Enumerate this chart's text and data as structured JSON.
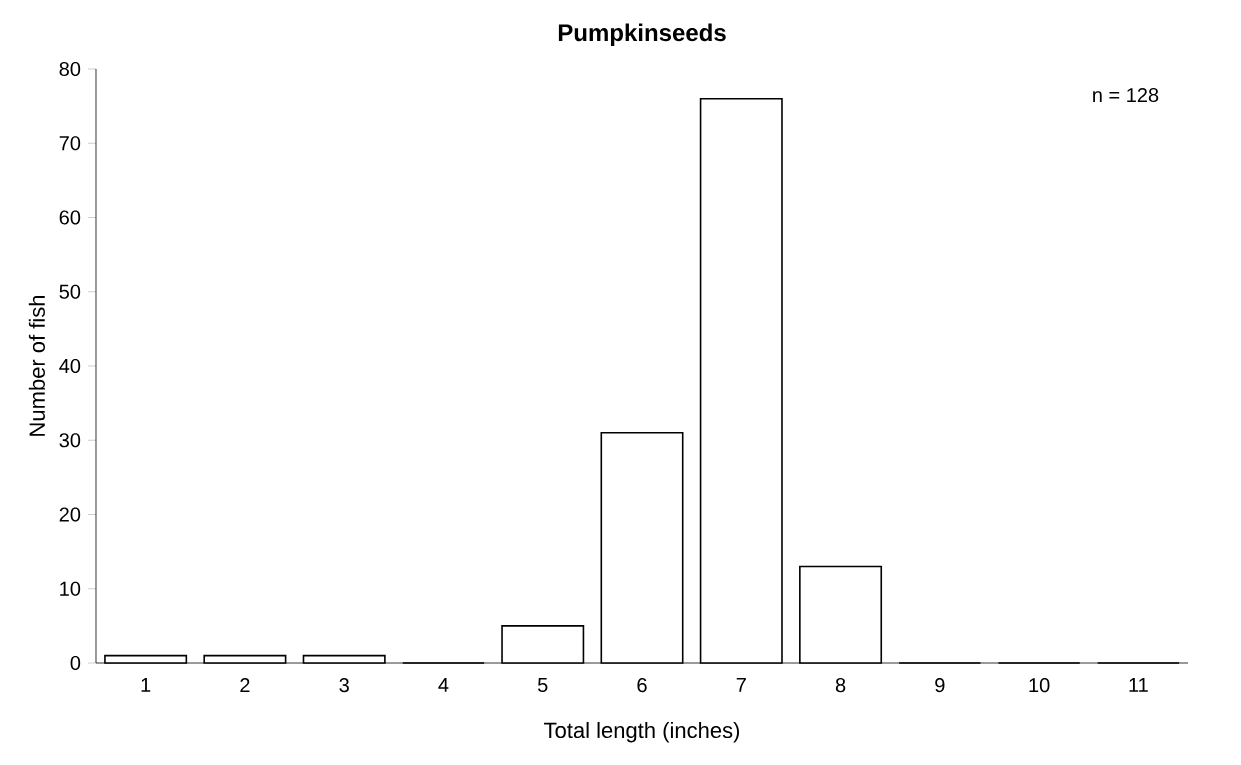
{
  "chart_data": {
    "type": "bar",
    "title": "Pumpkinseeds",
    "xlabel": "Total length (inches)",
    "ylabel": "Number of fish",
    "categories": [
      "1",
      "2",
      "3",
      "4",
      "5",
      "6",
      "7",
      "8",
      "9",
      "10",
      "11"
    ],
    "values": [
      1,
      1,
      1,
      0,
      5,
      31,
      76,
      13,
      0,
      0,
      0
    ],
    "color": "#ffffff",
    "ylim": [
      0,
      80
    ],
    "yticks": [
      0,
      10,
      20,
      30,
      40,
      50,
      60,
      70,
      80
    ],
    "annotations": [
      "n = 128"
    ]
  }
}
